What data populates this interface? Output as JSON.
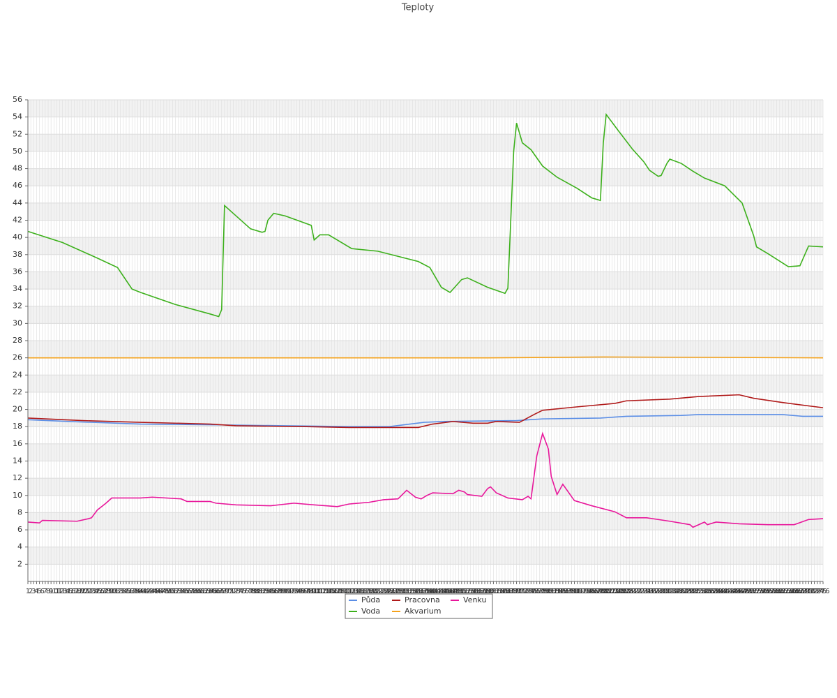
{
  "chart_data": {
    "type": "line",
    "title": "Teploty",
    "xlim": [
      1,
      276
    ],
    "xticks": [
      1,
      2,
      3,
      4,
      5,
      6,
      7,
      8,
      9,
      10,
      11,
      12,
      13,
      14,
      15,
      16,
      17,
      18,
      19,
      20,
      21,
      22,
      23,
      24,
      25,
      26,
      27,
      28,
      29,
      30,
      31,
      32,
      33,
      34,
      35,
      36,
      37,
      38,
      39,
      40,
      41,
      42,
      43,
      44,
      45,
      46,
      47,
      48,
      49,
      50,
      51,
      52,
      53,
      54,
      55,
      56,
      57,
      58,
      59,
      60,
      61,
      62,
      63,
      64,
      65,
      66,
      67,
      68,
      69,
      70,
      71,
      72,
      73,
      74,
      75,
      76,
      77,
      78,
      79,
      80,
      81,
      82,
      83,
      84,
      85,
      86,
      87,
      88,
      89,
      90,
      91,
      92,
      93,
      94,
      95,
      96,
      97,
      98,
      99,
      100,
      101,
      102,
      103,
      104,
      105,
      106,
      107,
      108,
      109,
      110,
      111,
      112,
      113,
      114,
      115,
      116,
      117,
      118,
      119,
      120,
      121,
      122,
      123,
      124,
      125,
      126,
      127,
      128,
      129,
      130,
      131,
      132,
      133,
      134,
      135,
      136,
      137,
      138,
      139,
      140,
      141,
      142,
      143,
      144,
      145,
      146,
      147,
      148,
      149,
      150,
      151,
      152,
      153,
      154,
      155,
      156,
      157,
      158,
      159,
      160,
      161,
      162,
      163,
      164,
      165,
      166,
      167,
      168,
      169,
      170,
      171,
      172,
      173,
      174,
      175,
      176,
      177,
      178,
      179,
      180,
      181,
      182,
      183,
      184,
      185,
      186,
      187,
      188,
      189,
      190,
      191,
      192,
      193,
      194,
      195,
      196,
      197,
      198,
      199,
      200,
      201,
      202,
      203,
      204,
      205,
      206,
      207,
      208,
      209,
      210,
      211,
      212,
      213,
      214,
      215,
      216,
      217,
      218,
      219,
      220,
      221,
      222,
      223,
      224,
      225,
      226,
      227,
      228,
      229,
      230,
      231,
      232,
      233,
      234,
      235,
      236,
      237,
      238,
      239,
      240,
      241,
      242,
      243,
      244,
      245,
      246,
      247,
      248,
      249,
      250,
      251,
      252,
      253,
      254,
      255,
      256,
      257,
      258,
      259,
      260,
      261,
      262,
      263,
      264,
      265,
      266,
      267,
      268,
      269,
      270,
      271,
      272,
      273,
      274,
      275,
      276
    ],
    "ylim": [
      0,
      56
    ],
    "yticks": [
      2,
      4,
      6,
      8,
      10,
      12,
      14,
      16,
      18,
      20,
      22,
      24,
      26,
      28,
      30,
      32,
      34,
      36,
      38,
      40,
      42,
      44,
      46,
      48,
      50,
      52,
      54,
      56
    ],
    "grid": true,
    "series": [
      {
        "name": "Půda",
        "color": "#5b8ee6",
        "x": [
          1,
          15,
          40,
          68,
          112,
          126,
          138,
          145,
          170,
          179,
          199,
          208,
          227,
          233,
          262,
          269,
          276
        ],
        "values": [
          18.8,
          18.6,
          18.3,
          18.2,
          18.0,
          18.0,
          18.5,
          18.6,
          18.7,
          18.9,
          19.0,
          19.2,
          19.3,
          19.4,
          19.4,
          19.2,
          19.2
        ]
      },
      {
        "name": "Voda",
        "color": "#3cb01b",
        "x": [
          1,
          13,
          25,
          32,
          37,
          40,
          52,
          64,
          67,
          68,
          69,
          73,
          78,
          82,
          83,
          84,
          86,
          90,
          99,
          100,
          102,
          105,
          113,
          122,
          136,
          140,
          144,
          147,
          151,
          153,
          160,
          166,
          167,
          169,
          170,
          172,
          175,
          179,
          184,
          191,
          196,
          199,
          200,
          201,
          205,
          210,
          214,
          216,
          219,
          220,
          222,
          223,
          227,
          231,
          235,
          242,
          248,
          252,
          253,
          257,
          264,
          268,
          271,
          276
        ],
        "values": [
          40.7,
          39.4,
          37.6,
          36.5,
          34.0,
          33.6,
          32.2,
          31.1,
          30.8,
          31.6,
          43.7,
          42.5,
          41.0,
          40.6,
          40.7,
          42.0,
          42.8,
          42.5,
          41.4,
          39.7,
          40.3,
          40.3,
          38.7,
          38.4,
          37.2,
          36.5,
          34.2,
          33.6,
          35.1,
          35.3,
          34.2,
          33.5,
          34.1,
          50.0,
          53.3,
          51.0,
          50.2,
          48.3,
          47.0,
          45.7,
          44.6,
          44.3,
          51.0,
          54.3,
          52.5,
          50.3,
          48.8,
          47.8,
          47.1,
          47.2,
          48.6,
          49.1,
          48.6,
          47.7,
          46.9,
          46.0,
          44.0,
          40.2,
          38.9,
          38.1,
          36.6,
          36.7,
          39.0,
          38.9
        ]
      },
      {
        "name": "Pracovna",
        "color": "#b01a1a",
        "x": [
          1,
          20,
          40,
          64,
          73,
          97,
          112,
          136,
          141,
          148,
          155,
          160,
          163,
          171,
          176,
          179,
          191,
          204,
          208,
          223,
          233,
          247,
          252,
          262,
          276
        ],
        "values": [
          19.0,
          18.7,
          18.5,
          18.3,
          18.1,
          18.0,
          17.9,
          17.9,
          18.3,
          18.6,
          18.4,
          18.4,
          18.6,
          18.5,
          19.4,
          19.9,
          20.3,
          20.7,
          21.0,
          21.2,
          21.5,
          21.7,
          21.3,
          20.8,
          20.2
        ]
      },
      {
        "name": "Akvarium",
        "color": "#f5a21b",
        "x": [
          1,
          160,
          200,
          276
        ],
        "values": [
          26.0,
          26.0,
          26.1,
          26.0
        ]
      },
      {
        "name": "Venku",
        "color": "#e8179b",
        "x": [
          1,
          5,
          6,
          18,
          22,
          23,
          25,
          28,
          30,
          40,
          44,
          54,
          56,
          64,
          66,
          73,
          85,
          93,
          100,
          108,
          112,
          119,
          124,
          129,
          132,
          135,
          137,
          139,
          141,
          148,
          150,
          152,
          153,
          158,
          160,
          161,
          163,
          167,
          172,
          174,
          175,
          177,
          179,
          181,
          182,
          184,
          186,
          190,
          196,
          204,
          208,
          215,
          223,
          230,
          231,
          235,
          236,
          239,
          247,
          257,
          259,
          266,
          271,
          276
        ],
        "values": [
          6.9,
          6.8,
          7.1,
          7.0,
          7.3,
          7.4,
          8.3,
          9.1,
          9.7,
          9.7,
          9.8,
          9.6,
          9.3,
          9.3,
          9.1,
          8.9,
          8.8,
          9.1,
          8.9,
          8.7,
          9.0,
          9.2,
          9.5,
          9.6,
          10.6,
          9.8,
          9.6,
          10.0,
          10.3,
          10.2,
          10.6,
          10.4,
          10.1,
          9.9,
          10.8,
          11.0,
          10.3,
          9.7,
          9.5,
          9.9,
          9.6,
          14.6,
          17.2,
          15.4,
          12.2,
          10.1,
          11.3,
          9.4,
          8.8,
          8.1,
          7.4,
          7.4,
          7.0,
          6.6,
          6.3,
          6.9,
          6.6,
          6.9,
          6.7,
          6.6,
          6.6,
          6.6,
          7.2,
          7.3
        ]
      }
    ]
  }
}
